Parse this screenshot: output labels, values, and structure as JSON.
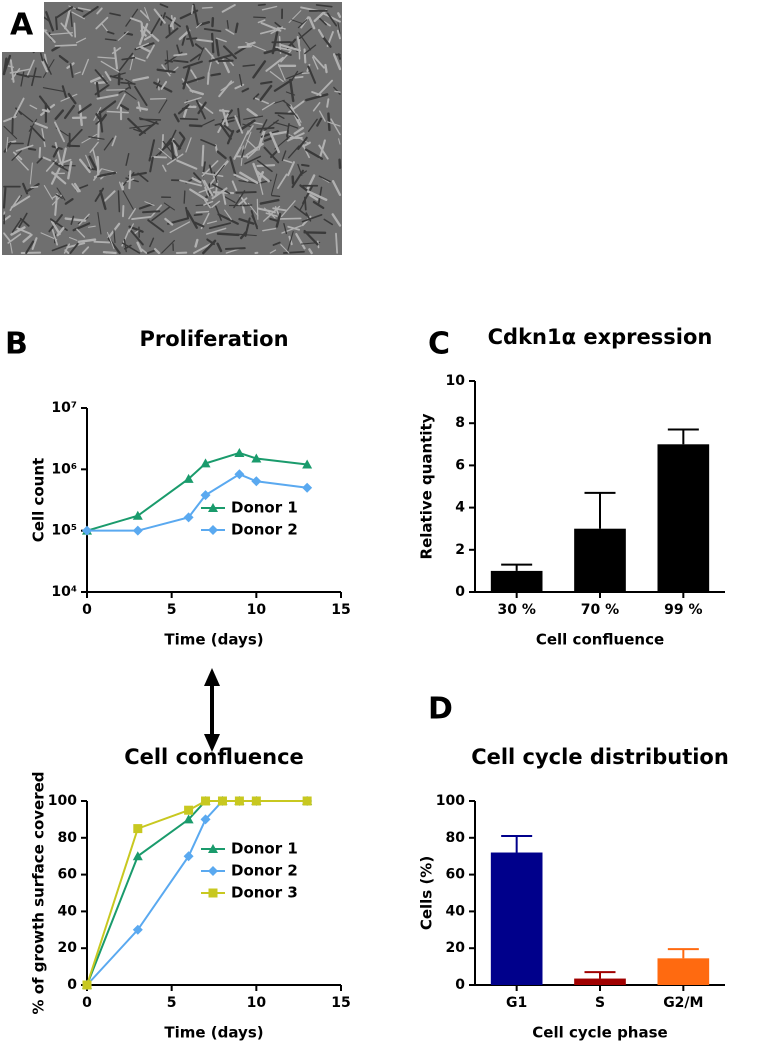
{
  "image_panel": {
    "label": "A"
  },
  "chart_data": [
    {
      "type": "line",
      "panel_label": "B",
      "title": "Proliferation",
      "x_label": "Time (days)",
      "y_label": "Cell count",
      "yscale": "log",
      "x": [
        0,
        3,
        6,
        7,
        9,
        10,
        13
      ],
      "series": [
        {
          "name": "Donor 1",
          "color": "#1a9b6c",
          "marker": "triangle",
          "values": [
            100000,
            175000,
            700000,
            1250000,
            1850000,
            1500000,
            1200000
          ]
        },
        {
          "name": "Donor 2",
          "color": "#5aa9f0",
          "marker": "diamond",
          "values": [
            100000,
            100000,
            165000,
            380000,
            830000,
            640000,
            500000
          ]
        }
      ],
      "xlim": [
        0,
        15
      ],
      "xticks": [
        0,
        5,
        10,
        15
      ],
      "ylim": [
        10000,
        10000000
      ],
      "yticks": [
        {
          "value": 10000,
          "label": "10⁴"
        },
        {
          "value": 100000,
          "label": "10⁵"
        },
        {
          "value": 1000000,
          "label": "10⁶"
        },
        {
          "value": 10000000,
          "label": "10⁷"
        }
      ],
      "legend": "lower right"
    },
    {
      "type": "line",
      "panel_label": null,
      "title": "Cell confluence",
      "x_label": "Time (days)",
      "y_label": "% of growth surface covered",
      "x": [
        0,
        3,
        6,
        7,
        8,
        9,
        10,
        13
      ],
      "series": [
        {
          "name": "Donor 1",
          "color": "#1a9b6c",
          "marker": "triangle",
          "values": [
            0,
            70,
            90,
            100,
            100,
            100,
            100,
            100
          ]
        },
        {
          "name": "Donor 2",
          "color": "#5aa9f0",
          "marker": "diamond",
          "values": [
            0,
            30,
            70,
            90,
            100,
            100,
            100,
            100
          ]
        },
        {
          "name": "Donor 3",
          "color": "#c8c820",
          "marker": "square",
          "values": [
            0,
            85,
            95,
            100,
            100,
            100,
            100,
            100
          ]
        }
      ],
      "xlim": [
        0,
        15
      ],
      "xticks": [
        0,
        5,
        10,
        15
      ],
      "ylim": [
        0,
        100
      ],
      "yticks": [
        0,
        20,
        40,
        60,
        80,
        100
      ],
      "legend": "lower right"
    },
    {
      "type": "bar",
      "panel_label": "C",
      "title": "Cdkn1α expression",
      "x_label": "Cell confluence",
      "y_label": "Relative quantity",
      "categories": [
        "30 %",
        "70 %",
        "99 %"
      ],
      "values": [
        1,
        3,
        7
      ],
      "errors": [
        0.3,
        1.7,
        0.7
      ],
      "colors": [
        "#000000",
        "#000000",
        "#000000"
      ],
      "ylim": [
        0,
        10
      ],
      "yticks": [
        0,
        2,
        4,
        6,
        8,
        10
      ]
    },
    {
      "type": "bar",
      "panel_label": "D",
      "title": "Cell cycle distribution",
      "x_label": "Cell cycle phase",
      "y_label": "Cells (%)",
      "categories": [
        "G1",
        "S",
        "G2/M"
      ],
      "values": [
        72,
        3.5,
        14.5
      ],
      "errors": [
        9,
        3.5,
        5
      ],
      "colors": [
        "#00008b",
        "#a00000",
        "#ff6a10"
      ],
      "ylim": [
        0,
        100
      ],
      "yticks": [
        0,
        20,
        40,
        60,
        80,
        100
      ]
    }
  ]
}
